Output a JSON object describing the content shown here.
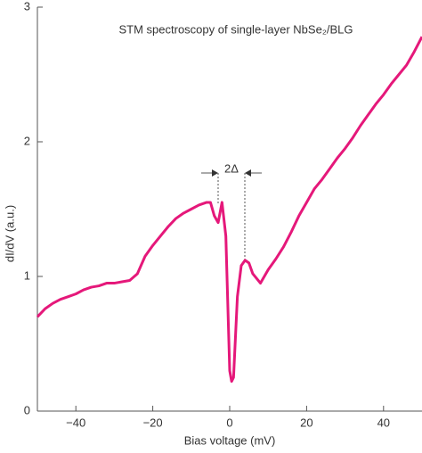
{
  "chart_data": {
    "type": "line",
    "title": "STM spectroscopy of single-layer NbSe₂/BLG",
    "xlabel": "Bias voltage (mV)",
    "ylabel": "dI/dV (a.u.)",
    "annotation": "2Δ",
    "xlim": [
      -50,
      50
    ],
    "ylim": [
      0,
      3
    ],
    "xticks": [
      {
        "value": -40,
        "label": "−40"
      },
      {
        "value": -20,
        "label": "−20"
      },
      0,
      20,
      40
    ],
    "yticks": [
      0,
      1,
      2,
      3
    ],
    "x": [
      -50,
      -48,
      -46,
      -44,
      -42,
      -40,
      -38,
      -36,
      -34,
      -32,
      -30,
      -28,
      -26,
      -24,
      -22,
      -20,
      -18,
      -16,
      -14,
      -12,
      -10,
      -8,
      -6,
      -5,
      -4,
      -3,
      -2,
      -1,
      0,
      0.5,
      1,
      2,
      3,
      4,
      5,
      6,
      8,
      10,
      12,
      14,
      16,
      18,
      20,
      22,
      24,
      26,
      28,
      30,
      32,
      34,
      36,
      38,
      40,
      42,
      44,
      46,
      48,
      50
    ],
    "series": [
      {
        "color": "#e5187a",
        "values": [
          0.7,
          0.76,
          0.8,
          0.83,
          0.85,
          0.87,
          0.9,
          0.92,
          0.93,
          0.95,
          0.95,
          0.96,
          0.97,
          1.02,
          1.15,
          1.23,
          1.3,
          1.37,
          1.43,
          1.47,
          1.5,
          1.53,
          1.55,
          1.55,
          1.45,
          1.4,
          1.55,
          1.3,
          0.3,
          0.22,
          0.25,
          0.85,
          1.08,
          1.12,
          1.1,
          1.02,
          0.95,
          1.05,
          1.13,
          1.22,
          1.33,
          1.45,
          1.55,
          1.65,
          1.72,
          1.8,
          1.88,
          1.95,
          2.03,
          2.12,
          2.2,
          2.28,
          2.35,
          2.43,
          2.5,
          2.57,
          2.67,
          2.78
        ]
      }
    ]
  }
}
